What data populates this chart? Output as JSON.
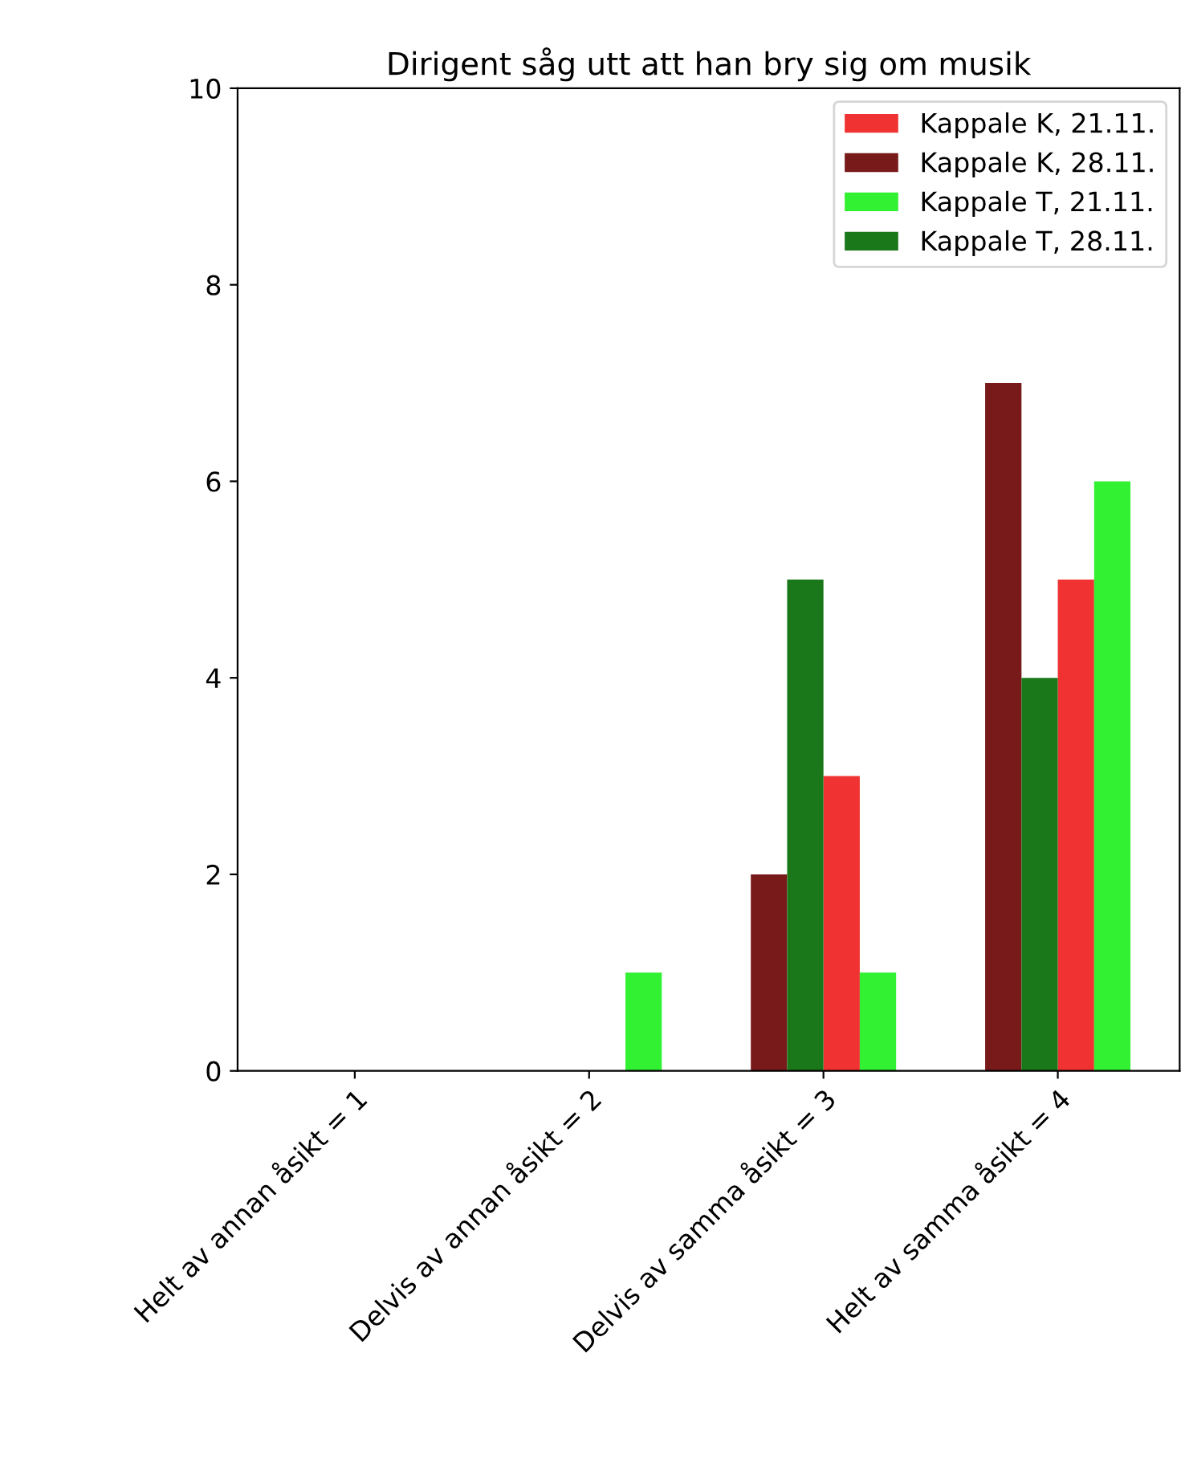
{
  "chart_data": {
    "type": "bar",
    "title": "Dirigent såg utt att han bry sig om musik",
    "categories": [
      "Helt av annan åsikt = 1",
      "Delvis av annan åsikt = 2",
      "Delvis av samma åsikt = 3",
      "Helt av samma åsikt = 4"
    ],
    "series": [
      {
        "name": "Kappale K, 21.11.",
        "color": "#f03232",
        "values": [
          0,
          0,
          3,
          5
        ]
      },
      {
        "name": "Kappale K, 28.11.",
        "color": "#781a1a",
        "values": [
          0,
          0,
          2,
          7
        ]
      },
      {
        "name": "Kappale T, 21.11.",
        "color": "#32f032",
        "values": [
          0,
          1,
          1,
          6
        ]
      },
      {
        "name": "Kappale T, 28.11.",
        "color": "#1a781a",
        "values": [
          0,
          0,
          5,
          4
        ]
      }
    ],
    "ylim": [
      0,
      10
    ],
    "yticks": [
      0,
      2,
      4,
      6,
      8,
      10
    ],
    "grid": false,
    "legend": "top right"
  }
}
